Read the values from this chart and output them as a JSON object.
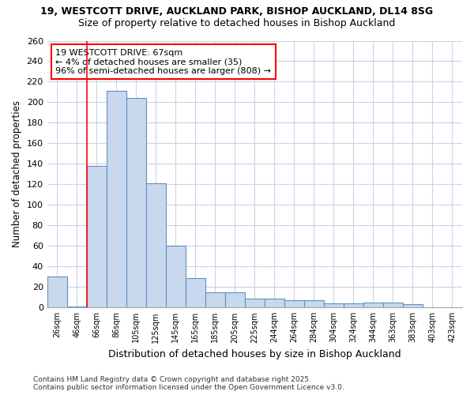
{
  "title1": "19, WESTCOTT DRIVE, AUCKLAND PARK, BISHOP AUCKLAND, DL14 8SG",
  "title2": "Size of property relative to detached houses in Bishop Auckland",
  "xlabel": "Distribution of detached houses by size in Bishop Auckland",
  "ylabel": "Number of detached properties",
  "categories": [
    "26sqm",
    "46sqm",
    "66sqm",
    "86sqm",
    "105sqm",
    "125sqm",
    "145sqm",
    "165sqm",
    "185sqm",
    "205sqm",
    "225sqm",
    "244sqm",
    "264sqm",
    "284sqm",
    "304sqm",
    "324sqm",
    "344sqm",
    "363sqm",
    "383sqm",
    "403sqm",
    "423sqm"
  ],
  "values": [
    30,
    1,
    138,
    211,
    204,
    121,
    60,
    29,
    15,
    15,
    9,
    9,
    7,
    7,
    4,
    4,
    5,
    5,
    3,
    0,
    0
  ],
  "bar_color": "#c8d8ed",
  "bar_edge_color": "#6090c0",
  "red_line_index": 2,
  "annotation_title": "19 WESTCOTT DRIVE: 67sqm",
  "annotation_line1": "← 4% of detached houses are smaller (35)",
  "annotation_line2": "96% of semi-detached houses are larger (808) →",
  "ylim": [
    0,
    260
  ],
  "yticks": [
    0,
    20,
    40,
    60,
    80,
    100,
    120,
    140,
    160,
    180,
    200,
    220,
    240,
    260
  ],
  "background_color": "#ffffff",
  "grid_color": "#c8d4e8",
  "footer1": "Contains HM Land Registry data © Crown copyright and database right 2025.",
  "footer2": "Contains public sector information licensed under the Open Government Licence v3.0.",
  "title_fontsize": 9,
  "subtitle_fontsize": 9
}
